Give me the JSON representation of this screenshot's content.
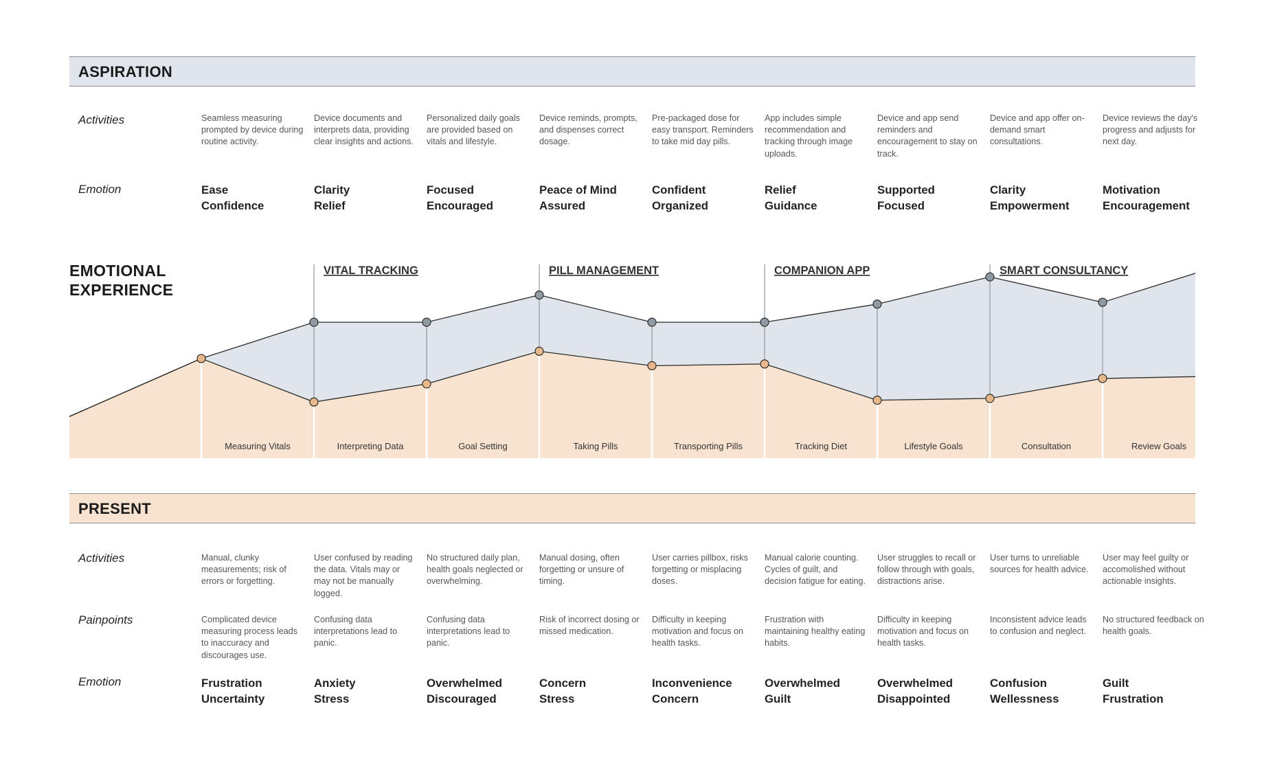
{
  "aspiration": {
    "title": "ASPIRATION",
    "activities_label": "Activities",
    "emotion_label": "Emotion",
    "activities": [
      "Seamless measuring prompted by device during routine activity.",
      "Device documents and interprets data, providing clear insights and actions.",
      "Personalized daily goals are provided based on vitals and lifestyle.",
      "Device reminds, prompts, and dispenses correct dosage.",
      "Pre-packaged dose for easy transport. Reminders to take mid day pills.",
      "App includes simple recommendation and tracking through image uploads.",
      "Device and app send reminders and encouragement to stay on track.",
      "Device and app offer on-demand smart consultations.",
      "Device reviews the day's progress and adjusts for next day."
    ],
    "emotions": [
      [
        "Ease",
        "Confidence"
      ],
      [
        "Clarity",
        "Relief"
      ],
      [
        "Focused",
        "Encouraged"
      ],
      [
        "Peace of Mind",
        "Assured"
      ],
      [
        "Confident",
        "Organized"
      ],
      [
        "Relief",
        "Guidance"
      ],
      [
        "Supported",
        "Focused"
      ],
      [
        "Clarity",
        "Empowerment"
      ],
      [
        "Motivation",
        "Encouragement"
      ]
    ]
  },
  "emotional_experience": {
    "title_line1": "EMOTIONAL",
    "title_line2": "EXPERIENCE",
    "phases": [
      "VITAL TRACKING",
      "PILL MANAGEMENT",
      "COMPANION APP",
      "SMART CONSULTANCY"
    ],
    "phase_start_step": [
      1,
      3,
      5,
      7
    ],
    "steps": [
      "Measuring Vitals",
      "Interpreting Data",
      "Goal Setting",
      "Taking Pills",
      "Transporting Pills",
      "Tracking Diet",
      "Lifestyle Goals",
      "Consultation",
      "Review Goals"
    ]
  },
  "chart_data": {
    "type": "area",
    "title": "EMOTIONAL EXPERIENCE",
    "categories": [
      "Measuring Vitals",
      "Interpreting Data",
      "Goal Setting",
      "Taking Pills",
      "Transporting Pills",
      "Tracking Diet",
      "Lifestyle Goals",
      "Consultation",
      "Review Goals"
    ],
    "ylim": [
      0,
      100
    ],
    "series": [
      {
        "name": "Aspiration",
        "color": "#dfe5ea",
        "marker_color": "#8f9aa3",
        "values": [
          47,
          67,
          67,
          82,
          67,
          67,
          77,
          92,
          78
        ],
        "start_value": 15,
        "end_value": 94
      },
      {
        "name": "Present",
        "color": "#f7e3cf",
        "marker_color": "#e9b88a",
        "values": [
          47,
          23,
          33,
          51,
          43,
          44,
          24,
          25,
          36
        ],
        "start_value": 15,
        "end_value": 37
      }
    ]
  },
  "present": {
    "title": "PRESENT",
    "activities_label": "Activities",
    "painpoints_label": "Painpoints",
    "emotion_label": "Emotion",
    "activities": [
      "Manual, clunky measurements; risk of errors or forgetting.",
      "User confused by reading the data. Vitals may or may not be manually logged.",
      "No structured daily plan, health goals neglected or overwhelming.",
      "Manual dosing, often forgetting or unsure of timing.",
      "User carries pillbox, risks forgetting or misplacing doses.",
      "Manual calorie counting. Cycles of guilt, and decision fatigue for eating.",
      "User struggles to recall or follow through with goals, distractions arise.",
      "User turns to unreliable sources for health advice.",
      "User may feel guilty or accomolished without actionable insights."
    ],
    "painpoints": [
      "Complicated device measuring process leads to inaccuracy and discourages use.",
      "Confusing data interpretations lead to panic.",
      "Confusing data interpretations lead to panic.",
      "Risk of incorrect dosing or missed medication.",
      "Difficulty in keeping motivation and focus on health tasks.",
      "Frustration with maintaining healthy eating habits.",
      "Difficulty in keeping motivation and focus on health tasks.",
      "Inconsistent advice leads to confusion and neglect.",
      "No structured feedback on health goals."
    ],
    "emotions": [
      [
        "Frustration",
        "Uncertainty"
      ],
      [
        "Anxiety",
        "Stress"
      ],
      [
        "Overwhelmed",
        "Discouraged"
      ],
      [
        "Concern",
        "Stress"
      ],
      [
        "Inconvenience",
        "Concern"
      ],
      [
        "Overwhelmed",
        "Guilt"
      ],
      [
        "Overwhelmed",
        "Disappointed"
      ],
      [
        "Confusion",
        "Wellessness"
      ],
      [
        "Guilt",
        "Frustration"
      ]
    ]
  }
}
